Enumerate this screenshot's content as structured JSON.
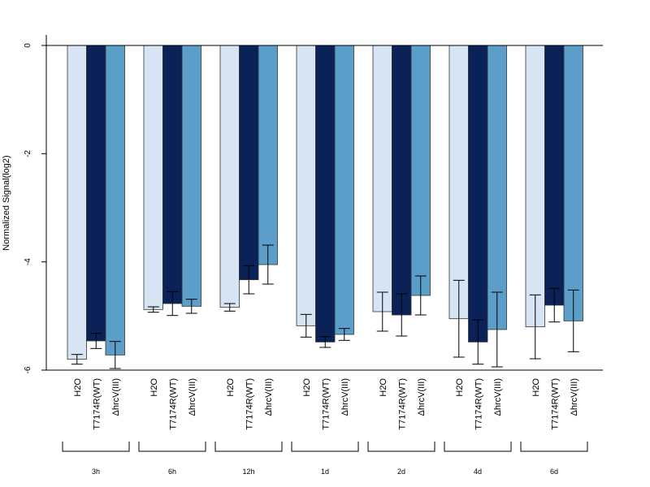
{
  "chart_data": {
    "type": "bar",
    "ylabel": "Normalized Signal(log2)",
    "ylim": [
      -6,
      0
    ],
    "yticks": [
      "0",
      "-2",
      "-4",
      "-6"
    ],
    "groups": [
      "3h",
      "6h",
      "12h",
      "1d",
      "2d",
      "4d",
      "6d"
    ],
    "series": [
      {
        "name": "H2O",
        "color": "#d6e4f3",
        "values": [
          -5.8,
          -4.88,
          -4.84,
          -5.18,
          -4.92,
          -5.05,
          -5.2
        ],
        "errors": [
          0.09,
          0.05,
          0.07,
          0.21,
          0.36,
          0.71,
          0.59
        ]
      },
      {
        "name": "T7174R(WT)",
        "color": "#0a2257",
        "values": [
          -5.46,
          -4.77,
          -4.33,
          -5.48,
          -4.98,
          -5.48,
          -4.8
        ],
        "errors": [
          0.14,
          0.22,
          0.26,
          0.1,
          0.39,
          0.41,
          0.31
        ]
      },
      {
        "name": "ΔhrcV(III)",
        "color": "#5b9ec9",
        "values": [
          -5.72,
          -4.82,
          -4.05,
          -5.34,
          -4.62,
          -5.25,
          -5.09
        ],
        "errors": [
          0.25,
          0.13,
          0.36,
          0.11,
          0.36,
          0.69,
          0.57
        ]
      }
    ],
    "grid": false,
    "legend": "none"
  }
}
